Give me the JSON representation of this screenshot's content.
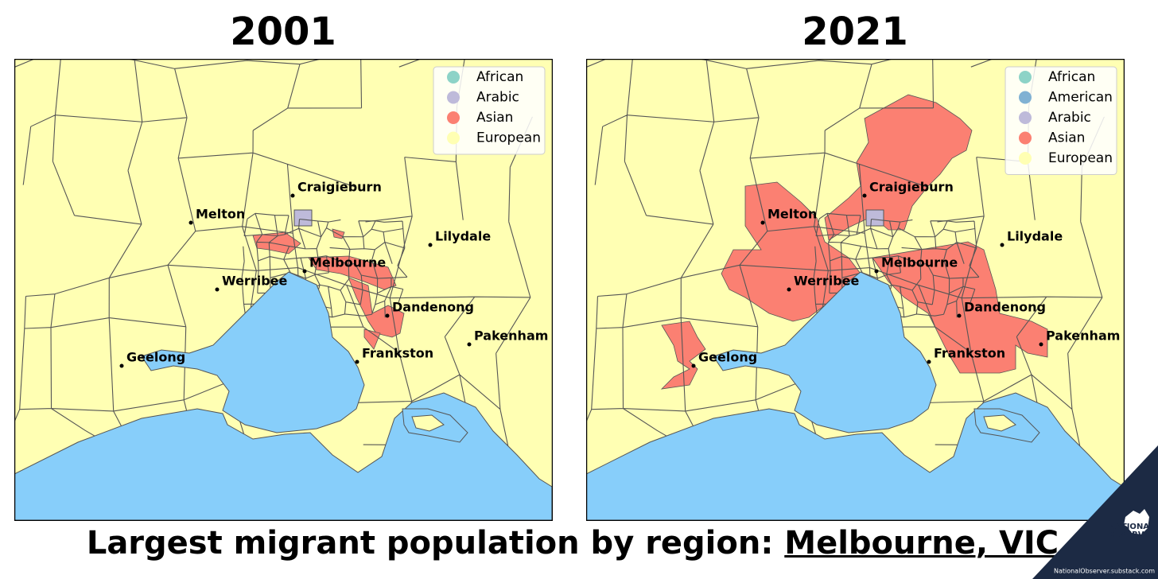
{
  "maps": [
    {
      "title": "2001",
      "legend": [
        {
          "label": "African",
          "color": "#8dd3c7"
        },
        {
          "label": "Arabic",
          "color": "#bebada"
        },
        {
          "label": "Asian",
          "color": "#fb8072"
        },
        {
          "label": "European",
          "color": "#ffffb3"
        }
      ],
      "cities": [
        "Craigieburn",
        "Melton",
        "Lilydale",
        "Melbourne",
        "Werribee",
        "Dandenong",
        "Pakenham",
        "Frankston",
        "Geelong"
      ]
    },
    {
      "title": "2021",
      "legend": [
        {
          "label": "African",
          "color": "#8dd3c7"
        },
        {
          "label": "American",
          "color": "#80b1d3"
        },
        {
          "label": "Arabic",
          "color": "#bebada"
        },
        {
          "label": "Asian",
          "color": "#fb8072"
        },
        {
          "label": "European",
          "color": "#ffffb3"
        }
      ],
      "cities": [
        "Craigieburn",
        "Melton",
        "Lilydale",
        "Melbourne",
        "Werribee",
        "Dandenong",
        "Pakenham",
        "Frankston",
        "Geelong"
      ]
    }
  ],
  "caption": {
    "text": "Largest migrant population by region:",
    "place": "Melbourne, VIC"
  },
  "logo": {
    "lines": [
      "NATIONAL",
      "OBSERVER"
    ],
    "url": "NationalObserver.substack.com"
  }
}
